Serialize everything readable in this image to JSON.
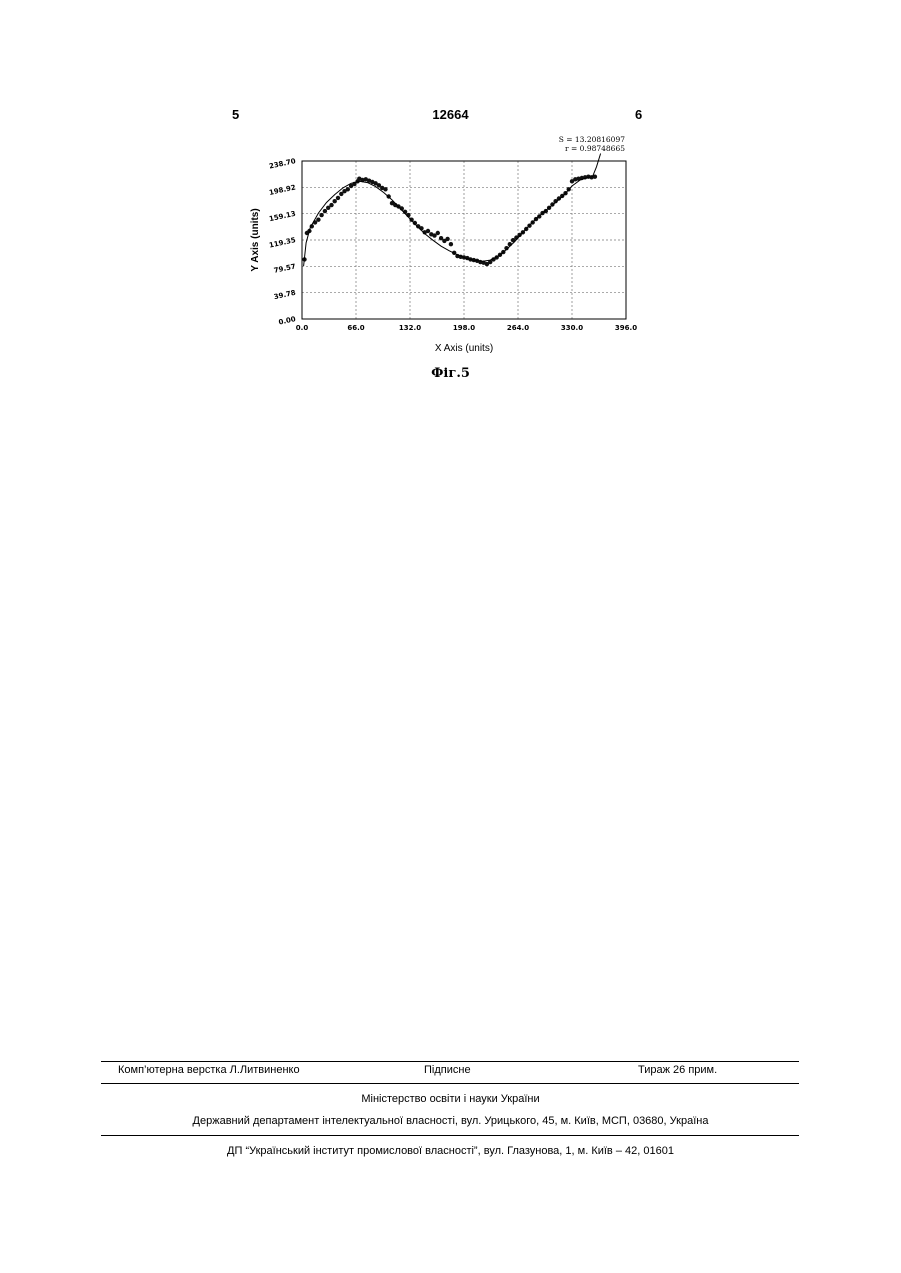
{
  "header": {
    "page_left": "5",
    "patent_number": "12664",
    "page_right": "6"
  },
  "chart_data": {
    "type": "scatter",
    "title": "",
    "xlabel": "X Axis (units)",
    "ylabel": "Y Axis (units)",
    "xlim": [
      0,
      396
    ],
    "ylim": [
      0,
      238.7
    ],
    "x_ticks": [
      "0.0",
      "66.0",
      "132.0",
      "198.0",
      "264.0",
      "330.0",
      "396.0"
    ],
    "y_ticks": [
      "0.00",
      "39.78",
      "79.57",
      "119.35",
      "159.13",
      "198.92",
      "238.70"
    ],
    "grid": true,
    "legend": "none",
    "annotations": [
      "S = 13.20816097",
      "r = 0.98748665"
    ],
    "series": [
      {
        "points": [
          [
            3,
            90
          ],
          [
            6,
            130
          ],
          [
            9,
            133
          ],
          [
            12,
            140
          ],
          [
            16,
            146
          ],
          [
            20,
            150
          ],
          [
            24,
            157
          ],
          [
            28,
            163
          ],
          [
            32,
            168
          ],
          [
            36,
            172
          ],
          [
            40,
            178
          ],
          [
            44,
            183
          ],
          [
            48,
            189
          ],
          [
            52,
            193
          ],
          [
            56,
            196
          ],
          [
            60,
            201
          ],
          [
            64,
            204
          ],
          [
            68,
            208
          ],
          [
            70,
            212
          ],
          [
            74,
            210
          ],
          [
            78,
            211
          ],
          [
            82,
            209
          ],
          [
            86,
            207
          ],
          [
            90,
            205
          ],
          [
            94,
            202
          ],
          [
            98,
            198
          ],
          [
            102,
            196
          ],
          [
            106,
            185
          ],
          [
            110,
            175
          ],
          [
            114,
            172
          ],
          [
            118,
            170
          ],
          [
            122,
            167
          ],
          [
            126,
            162
          ],
          [
            130,
            157
          ],
          [
            134,
            150
          ],
          [
            138,
            145
          ],
          [
            142,
            140
          ],
          [
            146,
            137
          ],
          [
            150,
            131
          ],
          [
            154,
            133
          ],
          [
            158,
            128
          ],
          [
            162,
            126
          ],
          [
            166,
            130
          ],
          [
            170,
            122
          ],
          [
            174,
            118
          ],
          [
            178,
            121
          ],
          [
            182,
            113
          ],
          [
            186,
            100
          ],
          [
            190,
            95
          ],
          [
            194,
            94
          ],
          [
            198,
            93
          ],
          [
            202,
            92
          ],
          [
            206,
            90
          ],
          [
            210,
            89
          ],
          [
            214,
            88
          ],
          [
            218,
            86
          ],
          [
            222,
            85
          ],
          [
            226,
            83
          ],
          [
            230,
            86
          ],
          [
            234,
            90
          ],
          [
            238,
            93
          ],
          [
            242,
            97
          ],
          [
            246,
            101
          ],
          [
            250,
            107
          ],
          [
            254,
            113
          ],
          [
            258,
            119
          ],
          [
            262,
            123
          ],
          [
            266,
            127
          ],
          [
            270,
            131
          ],
          [
            274,
            136
          ],
          [
            278,
            141
          ],
          [
            282,
            146
          ],
          [
            286,
            151
          ],
          [
            290,
            155
          ],
          [
            294,
            160
          ],
          [
            298,
            163
          ],
          [
            302,
            168
          ],
          [
            306,
            173
          ],
          [
            310,
            178
          ],
          [
            314,
            182
          ],
          [
            318,
            186
          ],
          [
            322,
            190
          ],
          [
            326,
            196
          ],
          [
            330,
            208
          ],
          [
            334,
            211
          ],
          [
            338,
            212
          ],
          [
            342,
            213
          ],
          [
            346,
            214
          ],
          [
            350,
            215
          ],
          [
            354,
            214
          ],
          [
            358,
            215
          ]
        ]
      },
      {
        "fit_curve": [
          [
            2,
            80
          ],
          [
            5,
            115
          ],
          [
            10,
            138
          ],
          [
            20,
            160
          ],
          [
            30,
            176
          ],
          [
            40,
            188
          ],
          [
            50,
            198
          ],
          [
            60,
            205
          ],
          [
            70,
            208
          ],
          [
            80,
            206
          ],
          [
            90,
            200
          ],
          [
            100,
            191
          ],
          [
            110,
            180
          ],
          [
            120,
            167
          ],
          [
            130,
            154
          ],
          [
            140,
            141
          ],
          [
            150,
            129
          ],
          [
            160,
            119
          ],
          [
            170,
            110
          ],
          [
            180,
            103
          ],
          [
            190,
            97
          ],
          [
            200,
            92
          ],
          [
            210,
            89
          ],
          [
            220,
            87
          ],
          [
            230,
            89
          ],
          [
            240,
            95
          ],
          [
            250,
            105
          ],
          [
            260,
            117
          ],
          [
            270,
            131
          ],
          [
            280,
            144
          ],
          [
            290,
            156
          ],
          [
            300,
            166
          ],
          [
            310,
            176
          ],
          [
            320,
            187
          ],
          [
            330,
            201
          ],
          [
            340,
            210
          ],
          [
            350,
            214
          ],
          [
            355,
            215
          ],
          [
            360,
            230
          ],
          [
            365,
            250
          ]
        ]
      }
    ]
  },
  "figure_caption": "Фіг.5",
  "footer": {
    "layout_credit": "Комп’ютерна верстка Л.Литвиненко",
    "signed": "Підписне",
    "circulation": "Тираж 26 прим.",
    "ministry": "Міністерство освіти і науки України",
    "department": "Державний департамент інтелектуальної власності, вул. Урицького, 45, м. Київ, МСП, 03680, Україна",
    "institute": "ДП “Український інститут промислової власності”, вул. Глазунова, 1, м. Київ – 42, 01601"
  }
}
